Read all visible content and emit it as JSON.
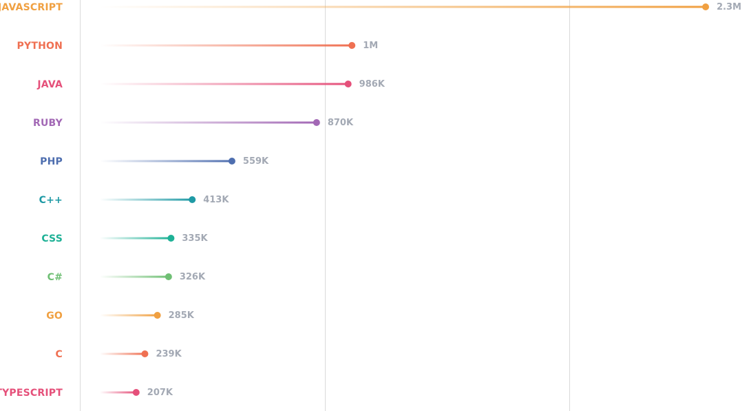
{
  "chart_data": {
    "type": "lollipop",
    "categories": [
      "JAVASCRIPT",
      "PYTHON",
      "JAVA",
      "RUBY",
      "PHP",
      "C++",
      "CSS",
      "C#",
      "GO",
      "C",
      "TYPESCRIPT"
    ],
    "values": [
      2300000,
      1000000,
      986000,
      870000,
      559000,
      413000,
      335000,
      326000,
      285000,
      239000,
      207000
    ],
    "value_labels": [
      "2.3M",
      "1M",
      "986K",
      "870K",
      "559K",
      "413K",
      "335K",
      "326K",
      "285K",
      "239K",
      "207K"
    ],
    "colors": [
      "#f0a041",
      "#ef7052",
      "#e5507a",
      "#a268b5",
      "#4e6eaf",
      "#1f9aa5",
      "#1eb196",
      "#6fbf74",
      "#f0a041",
      "#ef7052",
      "#e5507a"
    ],
    "xlim": [
      0,
      2300000
    ],
    "grid": true,
    "gridline_values": [
      0,
      900000,
      1800000
    ],
    "title": "",
    "xlabel": "",
    "ylabel": ""
  }
}
